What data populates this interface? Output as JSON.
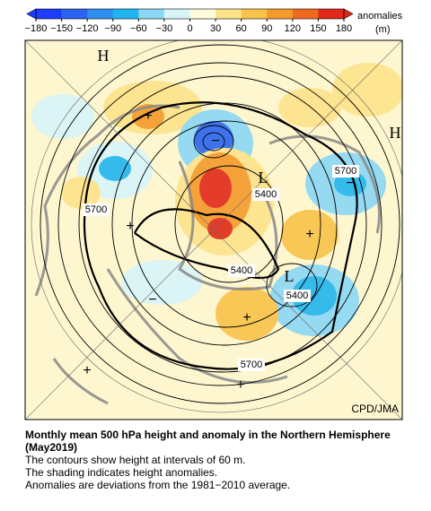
{
  "colorbar": {
    "title": "anomalies",
    "unit": "(m)",
    "range": [
      -180,
      180
    ],
    "ticks": [
      {
        "value": -180,
        "label": "−180"
      },
      {
        "value": -150,
        "label": "−150"
      },
      {
        "value": -120,
        "label": "−120"
      },
      {
        "value": -90,
        "label": "−90"
      },
      {
        "value": -60,
        "label": "−60"
      },
      {
        "value": -30,
        "label": "−30"
      },
      0,
      30,
      60,
      90,
      120,
      150,
      180
    ],
    "colors": [
      "#1e3cff",
      "#2a64f0",
      "#2f8ff0",
      "#20b4f0",
      "#8ad8f5",
      "#d8f4fb",
      "#fffbdc",
      "#fde38a",
      "#f9c24a",
      "#f59a2a",
      "#f06a1e",
      "#e2281a"
    ]
  },
  "map": {
    "labels": [
      "H",
      "H",
      "L",
      "L",
      "5700",
      "5700",
      "5700",
      "5400",
      "5400",
      "5400",
      "+",
      "+",
      "+",
      "+",
      "+",
      "−",
      "−",
      "−",
      "+"
    ],
    "credit": "CPD/JMA"
  },
  "caption": {
    "title": "Monthly mean 500 hPa height and anomaly in the Northern Hemisphere (May2019)",
    "lines": [
      "The contours show height at intervals of 60 m.",
      "The shading indicates height anomalies.",
      "Anomalies are deviations from the 1981−2010 average."
    ]
  }
}
